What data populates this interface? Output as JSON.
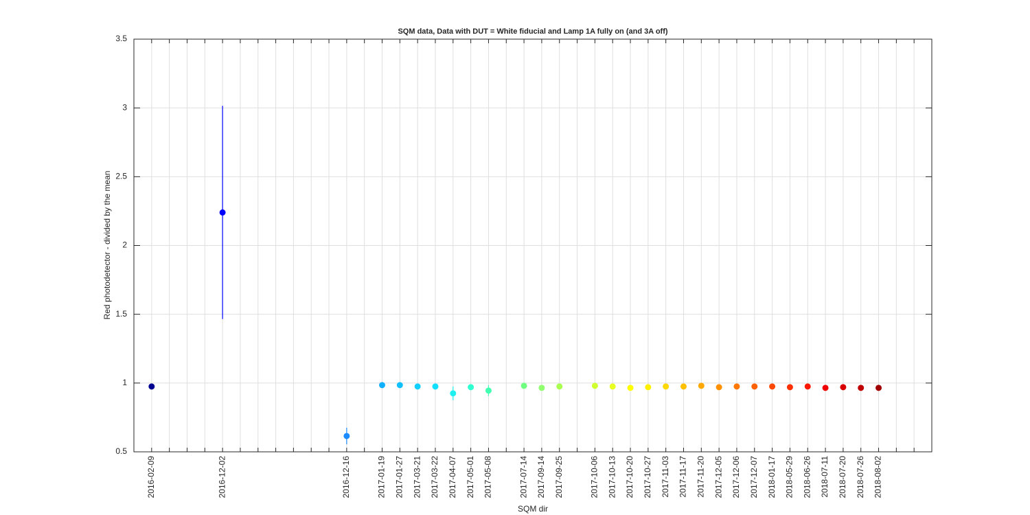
{
  "chart_data": {
    "type": "errorbar",
    "title": "SQM data, Data with DUT = White fiducial and Lamp 1A fully on (and 3A off)",
    "xlabel": "SQM dir",
    "ylabel": "Red photodetector - divided by the mean",
    "categories": [
      "2016-02-09",
      null,
      null,
      null,
      "2016-12-02",
      null,
      null,
      null,
      null,
      null,
      null,
      "2016-12-16",
      null,
      "2017-01-19",
      "2017-01-27",
      "2017-03-21",
      "2017-03-22",
      "2017-04-07",
      "2017-05-01",
      "2017-05-08",
      null,
      "2017-07-14",
      "2017-09-14",
      "2017-09-25",
      null,
      "2017-10-06",
      "2017-10-13",
      "2017-10-20",
      "2017-10-27",
      "2017-11-03",
      "2017-11-17",
      "2017-11-20",
      "2017-12-05",
      "2017-12-06",
      "2017-12-07",
      "2018-01-17",
      "2018-05-29",
      "2018-06-26",
      "2018-07-11",
      "2018-07-20",
      "2018-07-26",
      "2018-08-02",
      null,
      null
    ],
    "values": [
      0.975,
      null,
      null,
      null,
      2.24,
      null,
      null,
      null,
      null,
      null,
      null,
      0.615,
      null,
      0.985,
      0.985,
      0.975,
      0.975,
      0.925,
      0.97,
      0.945,
      null,
      0.98,
      0.965,
      0.975,
      null,
      0.98,
      0.975,
      0.965,
      0.97,
      0.975,
      0.975,
      0.98,
      0.97,
      0.975,
      0.975,
      0.975,
      0.97,
      0.975,
      0.965,
      0.97,
      0.965,
      0.965,
      null,
      null
    ],
    "errors": [
      0.01,
      null,
      null,
      null,
      0.775,
      null,
      null,
      null,
      null,
      null,
      null,
      0.06,
      null,
      0.01,
      0.01,
      0.01,
      0.01,
      0.05,
      0.02,
      0.04,
      null,
      0.01,
      0.01,
      0.01,
      null,
      0.01,
      0.01,
      0.01,
      0.01,
      0.01,
      0.01,
      0.01,
      0.01,
      0.01,
      0.01,
      0.01,
      0.01,
      0.01,
      0.01,
      0.01,
      0.01,
      0.01,
      null,
      null
    ],
    "colors": [
      "#000090",
      null,
      null,
      null,
      "#0000ff",
      null,
      null,
      null,
      null,
      null,
      null,
      "#1a8cff",
      null,
      "#10b0ff",
      "#10c0ff",
      "#10d0ff",
      "#10e0ff",
      "#20f0f0",
      "#30ffd0",
      "#40ffb0",
      null,
      "#70ff80",
      "#90ff70",
      "#a8ff50",
      null,
      "#d0ff30",
      "#e8ff20",
      "#ffff00",
      "#fff000",
      "#ffd800",
      "#ffc000",
      "#ffa800",
      "#ff9000",
      "#ff7800",
      "#ff6000",
      "#ff4800",
      "#ff3000",
      "#ff1800",
      "#f00000",
      "#d80000",
      "#c00000",
      "#a00000",
      null,
      null
    ],
    "ylim": [
      0.5,
      3.5
    ],
    "yticks": [
      0.5,
      1,
      1.5,
      2,
      2.5,
      3,
      3.5
    ],
    "grid": true
  }
}
